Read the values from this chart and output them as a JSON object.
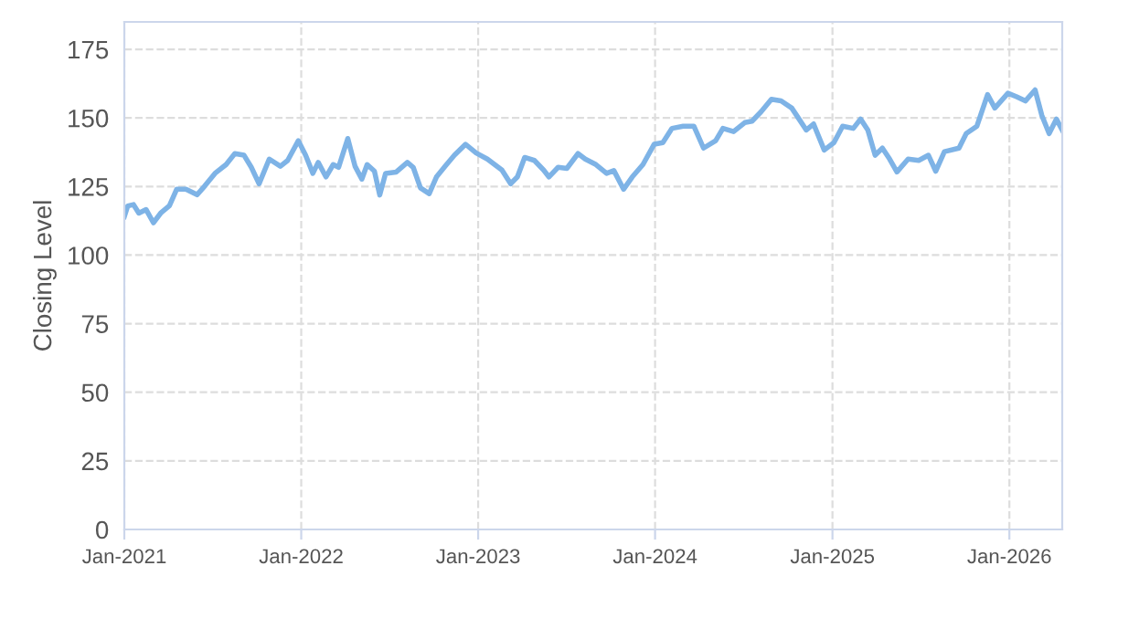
{
  "chart_data": {
    "type": "line",
    "ylabel": "Closing Level",
    "x": [
      "2021-01-01",
      "2021-01-08",
      "2021-01-20",
      "2021-01-31",
      "2021-02-15",
      "2021-03-02",
      "2021-03-17",
      "2021-04-04",
      "2021-04-19",
      "2021-05-08",
      "2021-05-31",
      "2021-06-15",
      "2021-07-07",
      "2021-07-30",
      "2021-08-17",
      "2021-09-05",
      "2021-09-20",
      "2021-10-06",
      "2021-10-27",
      "2021-11-19",
      "2021-12-04",
      "2021-12-26",
      "2022-01-10",
      "2022-01-25",
      "2022-02-05",
      "2022-02-21",
      "2022-03-08",
      "2022-03-19",
      "2022-04-07",
      "2022-04-22",
      "2022-05-06",
      "2022-05-17",
      "2022-06-01",
      "2022-06-12",
      "2022-06-24",
      "2022-07-16",
      "2022-08-08",
      "2022-08-20",
      "2022-09-04",
      "2022-09-22",
      "2022-10-07",
      "2022-10-25",
      "2022-11-13",
      "2022-12-06",
      "2022-12-28",
      "2023-01-20",
      "2023-02-19",
      "2023-03-09",
      "2023-03-23",
      "2023-04-07",
      "2023-04-27",
      "2023-05-16",
      "2023-05-27",
      "2023-06-15",
      "2023-07-03",
      "2023-07-26",
      "2023-08-10",
      "2023-09-01",
      "2023-09-23",
      "2023-10-08",
      "2023-10-28",
      "2023-11-15",
      "2023-12-07",
      "2023-12-30",
      "2024-01-17",
      "2024-02-05",
      "2024-02-28",
      "2024-03-21",
      "2024-04-10",
      "2024-05-05",
      "2024-05-20",
      "2024-06-11",
      "2024-07-04",
      "2024-07-19",
      "2024-08-07",
      "2024-08-28",
      "2024-09-17",
      "2024-10-09",
      "2024-10-24",
      "2024-11-08",
      "2024-11-23",
      "2024-12-15",
      "2025-01-04",
      "2025-01-22",
      "2025-02-13",
      "2025-02-28",
      "2025-03-15",
      "2025-03-30",
      "2025-04-14",
      "2025-04-29",
      "2025-05-14",
      "2025-06-06",
      "2025-06-28",
      "2025-07-18",
      "2025-08-02",
      "2025-08-20",
      "2025-09-19",
      "2025-10-04",
      "2025-10-26",
      "2025-11-17",
      "2025-12-02",
      "2025-12-29",
      "2026-01-16",
      "2026-02-03",
      "2026-02-23",
      "2026-03-09",
      "2026-03-24",
      "2026-04-08",
      "2026-04-20"
    ],
    "series": [
      {
        "color": "#7eb3e6",
        "values": [
          114,
          117.9,
          118.4,
          115.3,
          116.6,
          111.8,
          115.3,
          118,
          124,
          124,
          122,
          125,
          129.8,
          133,
          137,
          136.4,
          132,
          126,
          135,
          132.4,
          134.5,
          141.7,
          136.4,
          129.8,
          133.8,
          128.5,
          133,
          132,
          142.5,
          132.4,
          127.7,
          133,
          130.6,
          121.9,
          129.8,
          130.3,
          133.8,
          132,
          124.5,
          122.4,
          128.5,
          132.4,
          136.4,
          140.4,
          137.2,
          135,
          131,
          126,
          128.5,
          135.6,
          134.5,
          131,
          128.5,
          132,
          131.6,
          137,
          135,
          133,
          129.8,
          130.8,
          124,
          128.5,
          133,
          140.4,
          141,
          146.2,
          147,
          147,
          139,
          141.7,
          146.2,
          145,
          148.3,
          148.8,
          152.3,
          156.8,
          156.2,
          153.6,
          149.6,
          145.6,
          147.8,
          138.3,
          141,
          147,
          146.2,
          149.6,
          145.6,
          136.4,
          139,
          135,
          130.3,
          135,
          134.5,
          136.4,
          130.6,
          137.7,
          139,
          144.3,
          147,
          158.5,
          153.6,
          159,
          157.7,
          156.2,
          160.2,
          150.9,
          144.3,
          149.6,
          145.6
        ]
      }
    ],
    "xlim": [
      "2021-01-01",
      "2026-04-20"
    ],
    "xticks": [
      {
        "value": "2021-01-01",
        "label": "Jan-2021"
      },
      {
        "value": "2022-01-01",
        "label": "Jan-2022"
      },
      {
        "value": "2023-01-01",
        "label": "Jan-2023"
      },
      {
        "value": "2024-01-01",
        "label": "Jan-2024"
      },
      {
        "value": "2025-01-01",
        "label": "Jan-2025"
      },
      {
        "value": "2026-01-01",
        "label": "Jan-2026"
      }
    ],
    "ylim": [
      0,
      185
    ],
    "yticks": [
      0,
      25,
      50,
      75,
      100,
      125,
      150,
      175
    ],
    "grid": true,
    "legend": false,
    "marker": "none",
    "line_style": "solid"
  }
}
